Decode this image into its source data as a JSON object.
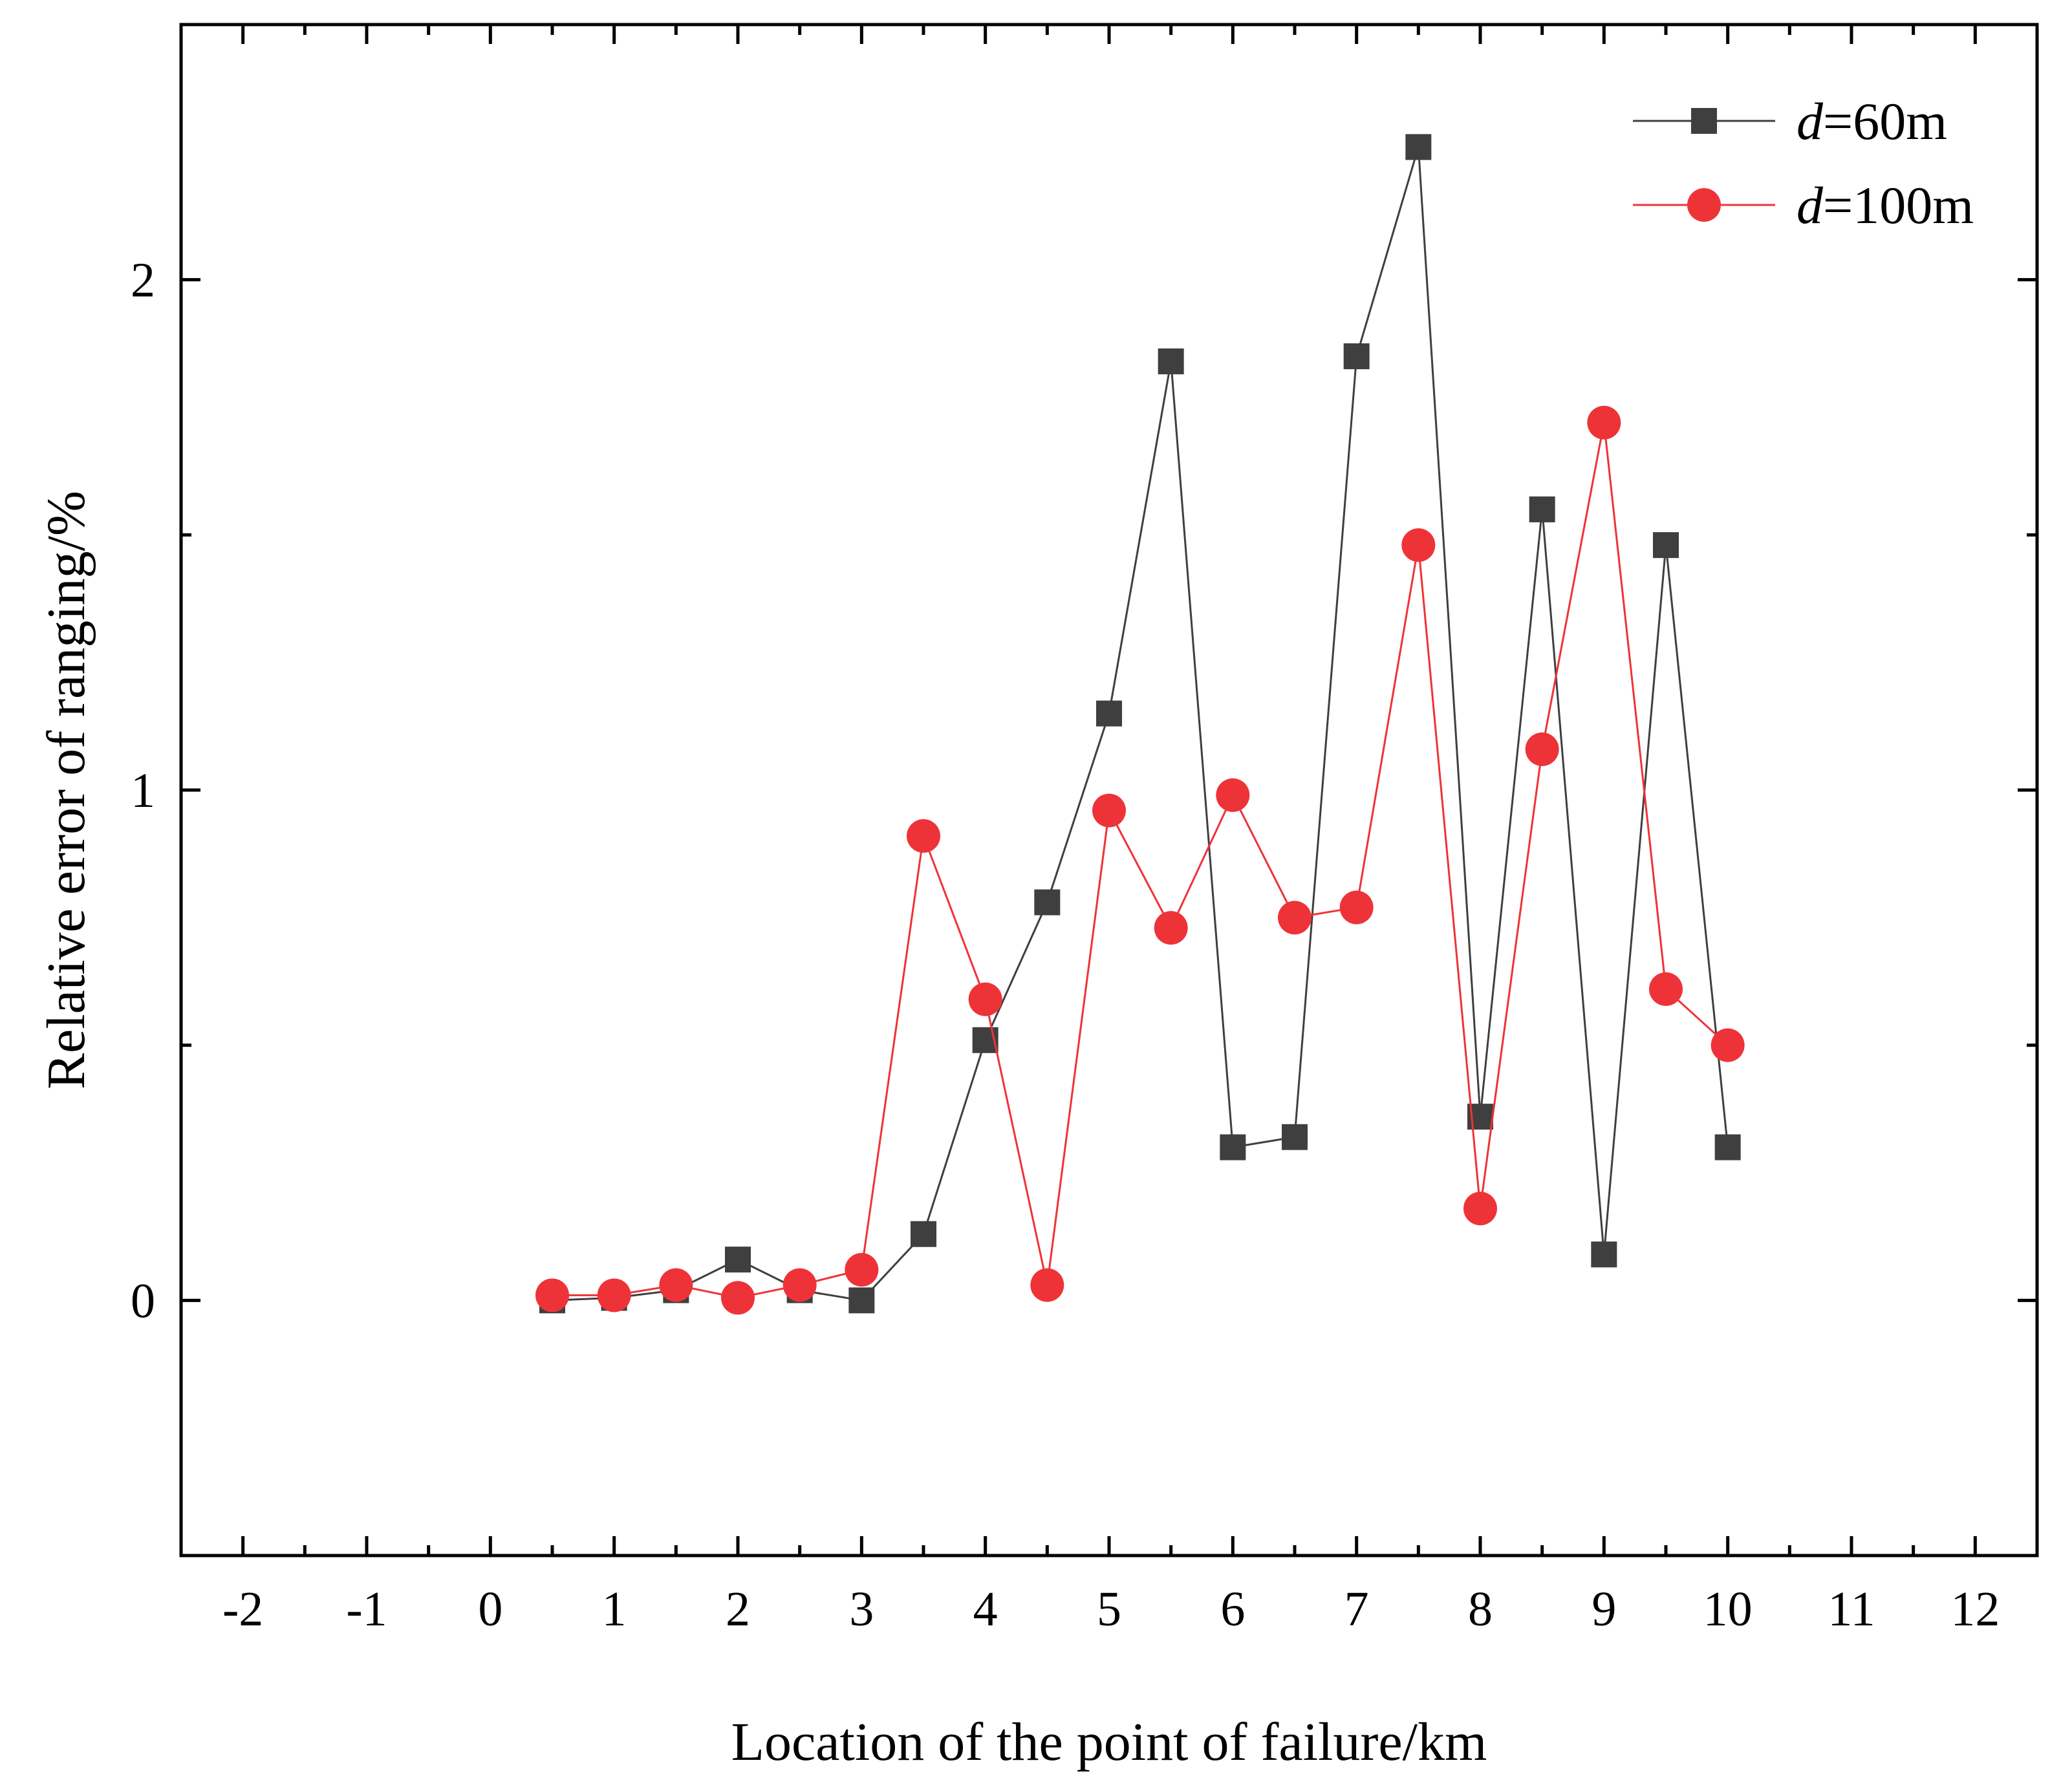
{
  "chart_data": {
    "type": "line",
    "title": "",
    "xlabel": "Location of the point of failure/km",
    "ylabel": "Relative error of ranging/%",
    "xlim": [
      -2.5,
      12.5
    ],
    "ylim": [
      -0.5,
      2.5
    ],
    "x_ticks": [
      -2,
      -1,
      0,
      1,
      2,
      3,
      4,
      5,
      6,
      7,
      8,
      9,
      10,
      11,
      12
    ],
    "x_tick_labels": [
      "-2",
      "-1",
      "0",
      "1",
      "2",
      "3",
      "4",
      "5",
      "6",
      "7",
      "8",
      "9",
      "10",
      "11",
      "12"
    ],
    "y_ticks": [
      0,
      1,
      2
    ],
    "y_tick_labels": [
      "0",
      "1",
      "2"
    ],
    "grid": false,
    "legend_position": "top-right",
    "series": [
      {
        "name": "d=60m",
        "legend_italic": "d",
        "legend_rest": "=60m",
        "marker": "square",
        "color": "#3f3f3f",
        "x": [
          0.5,
          1,
          1.5,
          2,
          2.5,
          3,
          3.5,
          4,
          4.5,
          5,
          5.5,
          6,
          6.5,
          7,
          7.5,
          8,
          8.5,
          9,
          9.5,
          10
        ],
        "y": [
          0.0,
          0.005,
          0.02,
          0.08,
          0.02,
          0.0,
          0.13,
          0.51,
          0.78,
          1.15,
          1.84,
          0.3,
          0.32,
          1.85,
          2.26,
          0.36,
          1.55,
          0.09,
          1.48,
          0.3
        ]
      },
      {
        "name": "d=100m",
        "legend_italic": "d",
        "legend_rest": "=100m",
        "marker": "circle",
        "color": "#ee3338",
        "x": [
          0.5,
          1,
          1.5,
          2,
          2.5,
          3,
          3.5,
          4,
          4.5,
          5,
          5.5,
          6,
          6.5,
          7,
          7.5,
          8,
          8.5,
          9,
          9.5,
          10
        ],
        "y": [
          0.01,
          0.01,
          0.03,
          0.005,
          0.03,
          0.06,
          0.91,
          0.59,
          0.03,
          0.96,
          0.73,
          0.99,
          0.75,
          0.77,
          1.48,
          0.18,
          1.08,
          1.72,
          0.61,
          0.5
        ]
      }
    ]
  }
}
